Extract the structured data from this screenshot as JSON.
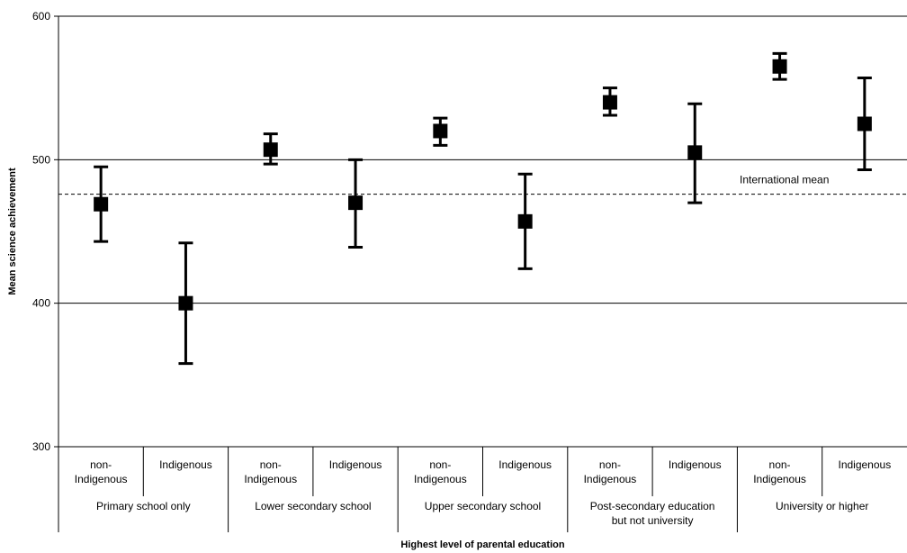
{
  "chart_data": {
    "type": "scatter",
    "title": "",
    "ylabel": "Mean science achievement",
    "xlabel": "Highest level of parental education",
    "ylim": [
      300,
      600
    ],
    "yticks": [
      300,
      400,
      500,
      600
    ],
    "grid": "horizontal at 400, 500, 600",
    "groups": [
      "Primary school only",
      "Lower secondary school",
      "Upper secondary school",
      "Post-secondary education but not university",
      "University or higher"
    ],
    "group_label_lines": [
      [
        "Primary school only"
      ],
      [
        "Lower secondary school"
      ],
      [
        "Upper secondary school"
      ],
      [
        "Post-secondary education",
        "but not university"
      ],
      [
        "University or higher"
      ]
    ],
    "subgroup_labels": [
      [
        "non-",
        "Indigenous"
      ],
      [
        "Indigenous"
      ]
    ],
    "points": [
      {
        "group": "Primary school only",
        "subgroup": "non-Indigenous",
        "mean": 469,
        "low": 443,
        "high": 495
      },
      {
        "group": "Primary school only",
        "subgroup": "Indigenous",
        "mean": 400,
        "low": 358,
        "high": 442
      },
      {
        "group": "Lower secondary school",
        "subgroup": "non-Indigenous",
        "mean": 507,
        "low": 497,
        "high": 518
      },
      {
        "group": "Lower secondary school",
        "subgroup": "Indigenous",
        "mean": 470,
        "low": 439,
        "high": 500
      },
      {
        "group": "Upper secondary school",
        "subgroup": "non-Indigenous",
        "mean": 520,
        "low": 510,
        "high": 529
      },
      {
        "group": "Upper secondary school",
        "subgroup": "Indigenous",
        "mean": 457,
        "low": 424,
        "high": 490
      },
      {
        "group": "Post-secondary education but not university",
        "subgroup": "non-Indigenous",
        "mean": 540,
        "low": 531,
        "high": 550
      },
      {
        "group": "Post-secondary education but not university",
        "subgroup": "Indigenous",
        "mean": 505,
        "low": 470,
        "high": 539
      },
      {
        "group": "University or higher",
        "subgroup": "non-Indigenous",
        "mean": 565,
        "low": 556,
        "high": 574
      },
      {
        "group": "University or higher",
        "subgroup": "Indigenous",
        "mean": 525,
        "low": 493,
        "high": 557
      }
    ],
    "reference_line": {
      "label": "International mean",
      "value": 476
    }
  }
}
